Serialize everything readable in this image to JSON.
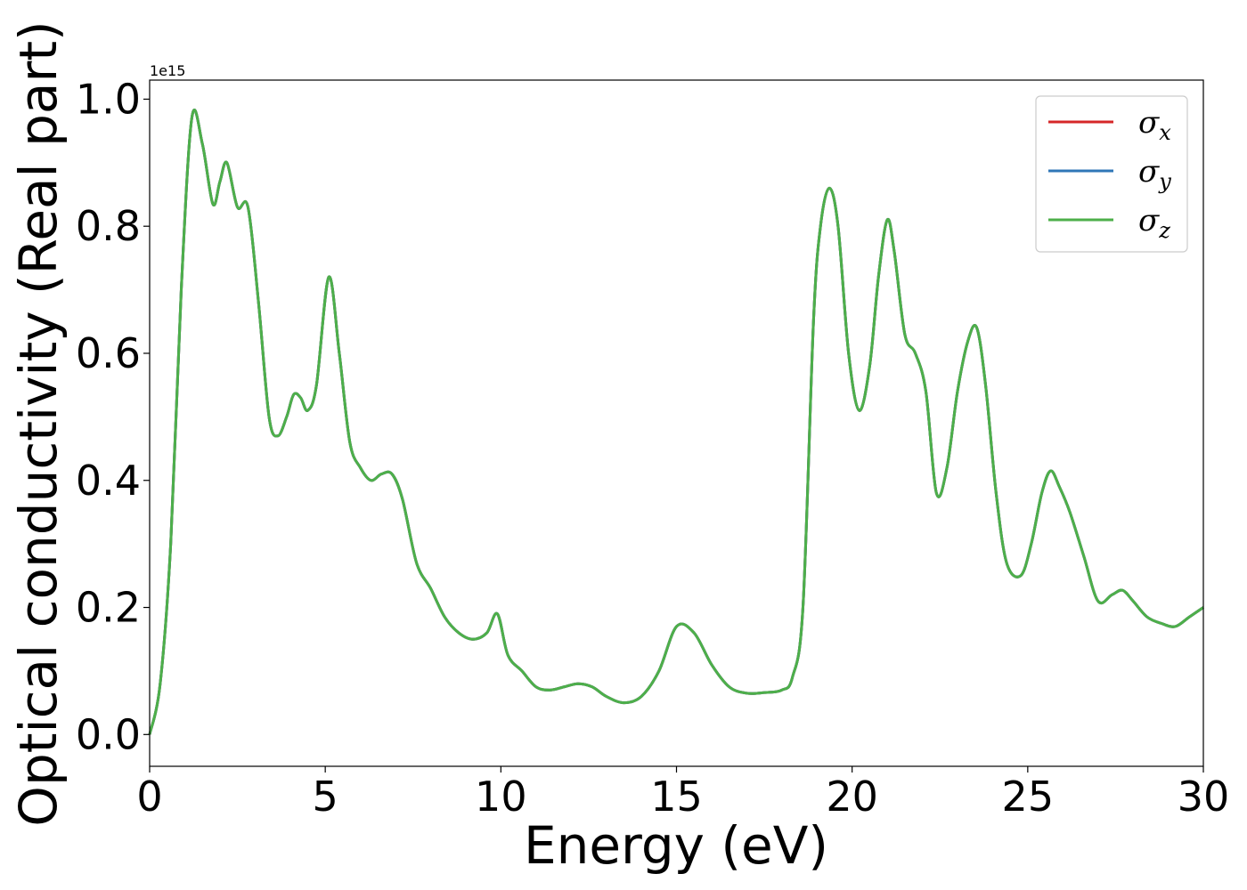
{
  "chart_data": {
    "type": "line",
    "title": "",
    "xlabel": "Energy (eV)",
    "ylabel": "Optical conductivity (Real part)",
    "y_offset_label": "1e15",
    "xlim": [
      0,
      30
    ],
    "ylim": [
      -0.05,
      1.03
    ],
    "xticks": [
      0,
      5,
      10,
      15,
      20,
      25,
      30
    ],
    "xtick_labels": [
      "0",
      "5",
      "10",
      "15",
      "20",
      "25",
      "30"
    ],
    "yticks": [
      0.0,
      0.2,
      0.4,
      0.6,
      0.8,
      1.0
    ],
    "ytick_labels": [
      "0.0",
      "0.2",
      "0.4",
      "0.6",
      "0.8",
      "1.0"
    ],
    "grid": false,
    "legend_position": "top-right",
    "x": [
      0,
      0.3,
      0.6,
      0.9,
      1.2,
      1.5,
      1.8,
      2.0,
      2.2,
      2.5,
      2.8,
      3.1,
      3.4,
      3.65,
      3.9,
      4.1,
      4.3,
      4.5,
      4.75,
      5.1,
      5.4,
      5.7,
      6.0,
      6.3,
      6.6,
      6.9,
      7.2,
      7.6,
      8.0,
      8.4,
      8.8,
      9.2,
      9.6,
      9.9,
      10.2,
      10.6,
      11.0,
      11.4,
      11.8,
      12.2,
      12.6,
      13.0,
      13.5,
      14.0,
      14.5,
      15.0,
      15.5,
      16.0,
      16.5,
      17.0,
      17.5,
      18.0,
      18.3,
      18.6,
      18.9,
      19.1,
      19.35,
      19.6,
      19.9,
      20.2,
      20.5,
      20.75,
      21.0,
      21.2,
      21.5,
      21.8,
      22.1,
      22.4,
      22.7,
      23.0,
      23.3,
      23.55,
      23.8,
      24.1,
      24.4,
      24.8,
      25.1,
      25.4,
      25.65,
      25.9,
      26.2,
      26.6,
      27.0,
      27.4,
      27.7,
      28.0,
      28.4,
      28.8,
      29.2,
      29.6,
      30.0
    ],
    "series": [
      {
        "name": "σx",
        "color": "#d62728",
        "values": [
          0.0,
          0.08,
          0.3,
          0.7,
          0.97,
          0.93,
          0.835,
          0.87,
          0.9,
          0.83,
          0.83,
          0.68,
          0.5,
          0.47,
          0.5,
          0.535,
          0.53,
          0.51,
          0.55,
          0.72,
          0.6,
          0.46,
          0.42,
          0.4,
          0.41,
          0.41,
          0.37,
          0.27,
          0.23,
          0.185,
          0.16,
          0.15,
          0.16,
          0.19,
          0.125,
          0.1,
          0.075,
          0.07,
          0.075,
          0.08,
          0.075,
          0.06,
          0.05,
          0.06,
          0.1,
          0.17,
          0.16,
          0.11,
          0.075,
          0.065,
          0.066,
          0.07,
          0.09,
          0.2,
          0.65,
          0.8,
          0.86,
          0.8,
          0.6,
          0.51,
          0.58,
          0.72,
          0.81,
          0.76,
          0.63,
          0.6,
          0.54,
          0.38,
          0.42,
          0.54,
          0.62,
          0.64,
          0.55,
          0.38,
          0.27,
          0.25,
          0.3,
          0.38,
          0.415,
          0.39,
          0.35,
          0.28,
          0.21,
          0.22,
          0.227,
          0.21,
          0.185,
          0.175,
          0.17,
          0.185,
          0.2
        ]
      },
      {
        "name": "σy",
        "color": "#2f76b7",
        "values": [
          0.0,
          0.08,
          0.3,
          0.7,
          0.97,
          0.93,
          0.835,
          0.87,
          0.9,
          0.83,
          0.83,
          0.68,
          0.5,
          0.47,
          0.5,
          0.535,
          0.53,
          0.51,
          0.55,
          0.72,
          0.6,
          0.46,
          0.42,
          0.4,
          0.41,
          0.41,
          0.37,
          0.27,
          0.23,
          0.185,
          0.16,
          0.15,
          0.16,
          0.19,
          0.125,
          0.1,
          0.075,
          0.07,
          0.075,
          0.08,
          0.075,
          0.06,
          0.05,
          0.06,
          0.1,
          0.17,
          0.16,
          0.11,
          0.075,
          0.065,
          0.066,
          0.07,
          0.09,
          0.2,
          0.65,
          0.8,
          0.86,
          0.8,
          0.6,
          0.51,
          0.58,
          0.72,
          0.81,
          0.76,
          0.63,
          0.6,
          0.54,
          0.38,
          0.42,
          0.54,
          0.62,
          0.64,
          0.55,
          0.38,
          0.27,
          0.25,
          0.3,
          0.38,
          0.415,
          0.39,
          0.35,
          0.28,
          0.21,
          0.22,
          0.227,
          0.21,
          0.185,
          0.175,
          0.17,
          0.185,
          0.2
        ]
      },
      {
        "name": "σz",
        "color": "#4daf4a",
        "values": [
          0.0,
          0.08,
          0.3,
          0.7,
          0.97,
          0.93,
          0.835,
          0.87,
          0.9,
          0.83,
          0.83,
          0.68,
          0.5,
          0.47,
          0.5,
          0.535,
          0.53,
          0.51,
          0.55,
          0.72,
          0.6,
          0.46,
          0.42,
          0.4,
          0.41,
          0.41,
          0.37,
          0.27,
          0.23,
          0.185,
          0.16,
          0.15,
          0.16,
          0.19,
          0.125,
          0.1,
          0.075,
          0.07,
          0.075,
          0.08,
          0.075,
          0.06,
          0.05,
          0.06,
          0.1,
          0.17,
          0.16,
          0.11,
          0.075,
          0.065,
          0.066,
          0.07,
          0.09,
          0.2,
          0.65,
          0.8,
          0.86,
          0.8,
          0.6,
          0.51,
          0.58,
          0.72,
          0.81,
          0.76,
          0.63,
          0.6,
          0.54,
          0.38,
          0.42,
          0.54,
          0.62,
          0.64,
          0.55,
          0.38,
          0.27,
          0.25,
          0.3,
          0.38,
          0.415,
          0.39,
          0.35,
          0.28,
          0.21,
          0.22,
          0.227,
          0.21,
          0.185,
          0.175,
          0.17,
          0.185,
          0.2
        ]
      }
    ],
    "legend": [
      {
        "symbol": "σ",
        "sub": "x"
      },
      {
        "symbol": "σ",
        "sub": "y"
      },
      {
        "symbol": "σ",
        "sub": "z"
      }
    ]
  }
}
